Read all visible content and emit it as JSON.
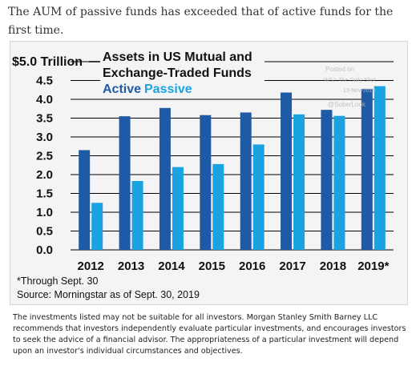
{
  "intro_text": "The AUM of passive funds has exceeded that of active funds for the first time.",
  "chart_data": {
    "type": "bar",
    "title_line1": "Assets in US Mutual and",
    "title_line2": "Exchange-Traded Funds",
    "top_tick_label": "$5.0 Trillion",
    "categories": [
      "2012",
      "2013",
      "2014",
      "2015",
      "2016",
      "2017",
      "2018",
      "2019*"
    ],
    "series": [
      {
        "name": "Active",
        "values": [
          2.65,
          3.55,
          3.77,
          3.58,
          3.65,
          4.18,
          3.72,
          4.27
        ]
      },
      {
        "name": "Passive",
        "values": [
          1.25,
          1.83,
          2.2,
          2.28,
          2.8,
          3.6,
          3.56,
          4.35
        ]
      }
    ],
    "y_ticks": [
      "4.5",
      "4.0",
      "3.5",
      "3.0",
      "2.5",
      "2.0",
      "1.5",
      "1.0",
      "0.5",
      "0.0"
    ],
    "ylim": [
      0,
      5
    ],
    "colors": {
      "active": "#1f5aa6",
      "passive": "#1aa3e0"
    },
    "watermark": [
      "Posted on",
      "WSJ: The Daily Shot",
      "13-Nov-2019",
      "@SoberLook"
    ],
    "footnote_1": "*Through Sept. 30",
    "footnote_2": "Source: Morningstar as of Sept. 30, 2019"
  },
  "disclaimer": "The investments listed may not be suitable for all investors. Morgan Stanley Smith Barney LLC recommends that investors independently evaluate particular investments, and encourages investors to seek the advice of a financial advisor. The appropriateness of a particular investment will depend upon an investor's individual circumstances and objectives."
}
